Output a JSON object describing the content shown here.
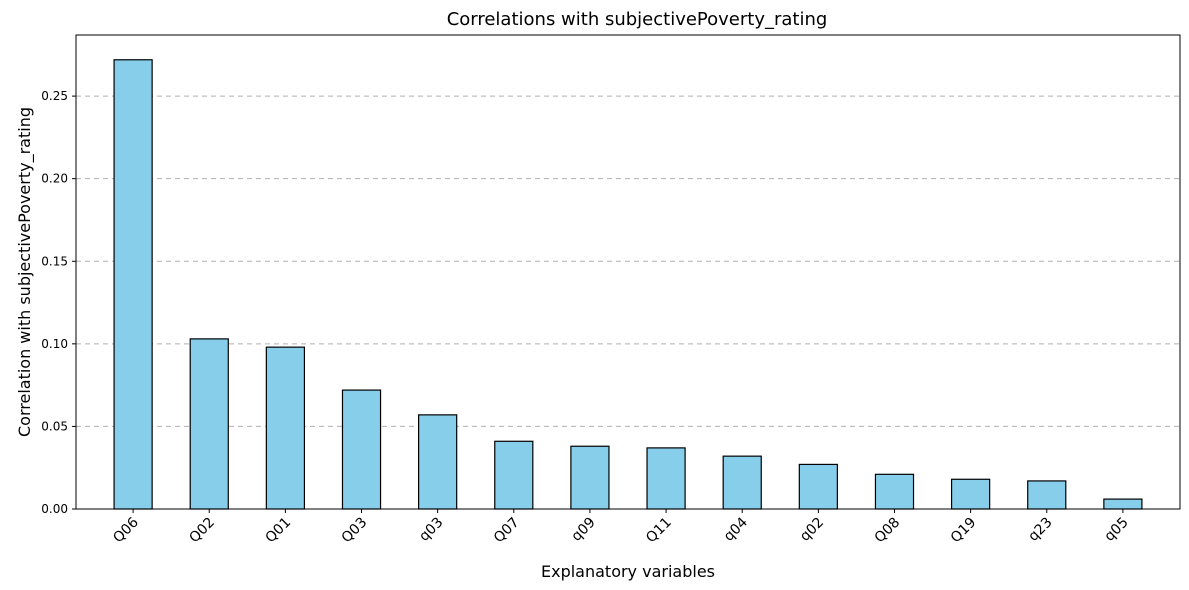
{
  "chart_data": {
    "type": "bar",
    "title": "Correlations with subjectivePoverty_rating",
    "xlabel": "Explanatory variables",
    "ylabel": "Correlation with subjectivePoverty_rating",
    "categories": [
      "Q06",
      "Q02",
      "Q01",
      "Q03",
      "q03",
      "Q07",
      "q09",
      "Q11",
      "q04",
      "q02",
      "Q08",
      "Q19",
      "q23",
      "q05"
    ],
    "values": [
      0.272,
      0.103,
      0.098,
      0.072,
      0.057,
      0.041,
      0.038,
      0.037,
      0.032,
      0.027,
      0.021,
      0.018,
      0.017,
      0.006
    ],
    "ylim": [
      0,
      0.287
    ],
    "yticks": [
      "0.00",
      "0.05",
      "0.10",
      "0.15",
      "0.20",
      "0.25"
    ],
    "ytick_values": [
      0,
      0.05,
      0.1,
      0.15,
      0.2,
      0.25
    ],
    "grid": "y-dashed",
    "bar_color": "#87CEEB",
    "edge_color": "#000000"
  }
}
